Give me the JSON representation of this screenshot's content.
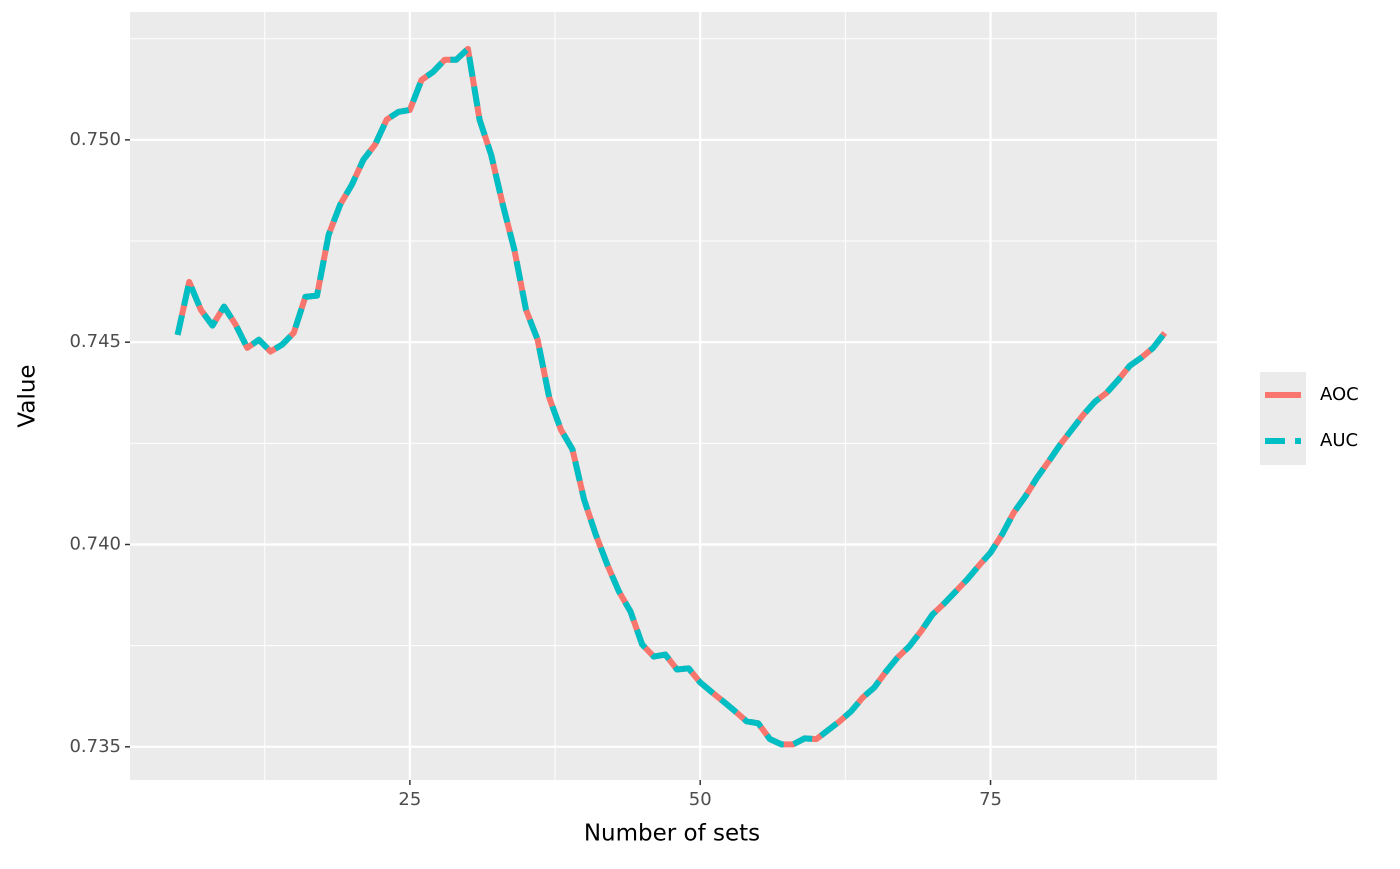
{
  "chart_data": {
    "type": "line",
    "x_label": "Number of sets",
    "y_label": "Value",
    "x": [
      5,
      6,
      7,
      8,
      9,
      10,
      11,
      12,
      13,
      14,
      15,
      16,
      17,
      18,
      19,
      20,
      21,
      22,
      23,
      24,
      25,
      26,
      27,
      28,
      29,
      30,
      31,
      32,
      33,
      34,
      35,
      36,
      37,
      38,
      39,
      40,
      41,
      42,
      43,
      44,
      45,
      46,
      47,
      48,
      49,
      50,
      51,
      52,
      53,
      54,
      55,
      56,
      57,
      58,
      59,
      60,
      61,
      62,
      63,
      64,
      65,
      66,
      67,
      68,
      69,
      70,
      71,
      72,
      73,
      74,
      75,
      76,
      77,
      78,
      79,
      80,
      81,
      82,
      83,
      84,
      85,
      86,
      87,
      88,
      89,
      90
    ],
    "series": [
      {
        "name": "AOC",
        "color": "#F8766D",
        "dash": "solid",
        "values": [
          0.74518,
          0.74649,
          0.7458,
          0.74541,
          0.74588,
          0.74543,
          0.74486,
          0.74506,
          0.74477,
          0.74494,
          0.74523,
          0.74612,
          0.74615,
          0.74765,
          0.7484,
          0.74889,
          0.74951,
          0.74988,
          0.7505,
          0.75069,
          0.75074,
          0.75148,
          0.75168,
          0.75198,
          0.75198,
          0.75225,
          0.7505,
          0.74963,
          0.7484,
          0.74728,
          0.7458,
          0.74506,
          0.74363,
          0.74284,
          0.74235,
          0.74111,
          0.74025,
          0.7395,
          0.73884,
          0.73834,
          0.73753,
          0.73723,
          0.73728,
          0.73691,
          0.73694,
          0.73659,
          0.73635,
          0.73612,
          0.73588,
          0.73563,
          0.73558,
          0.73519,
          0.73506,
          0.73506,
          0.73521,
          0.73519,
          0.73541,
          0.73563,
          0.73588,
          0.73622,
          0.73647,
          0.73686,
          0.73721,
          0.73748,
          0.73785,
          0.73827,
          0.73854,
          0.73884,
          0.73914,
          0.73948,
          0.7398,
          0.74025,
          0.74079,
          0.74119,
          0.74165,
          0.74205,
          0.74247,
          0.74284,
          0.74321,
          0.74353,
          0.74375,
          0.74407,
          0.74442,
          0.74462,
          0.74486,
          0.74523
        ]
      },
      {
        "name": "AUC",
        "color": "#00BFC4",
        "dash": "dashed",
        "values": [
          0.74518,
          0.74649,
          0.7458,
          0.74541,
          0.74588,
          0.74543,
          0.74486,
          0.74506,
          0.74477,
          0.74494,
          0.74523,
          0.74612,
          0.74615,
          0.74765,
          0.7484,
          0.74889,
          0.74951,
          0.74988,
          0.7505,
          0.75069,
          0.75074,
          0.75148,
          0.75168,
          0.75198,
          0.75198,
          0.75225,
          0.7505,
          0.74963,
          0.7484,
          0.74728,
          0.7458,
          0.74506,
          0.74363,
          0.74284,
          0.74235,
          0.74111,
          0.74025,
          0.7395,
          0.73884,
          0.73834,
          0.73753,
          0.73723,
          0.73728,
          0.73691,
          0.73694,
          0.73659,
          0.73635,
          0.73612,
          0.73588,
          0.73563,
          0.73558,
          0.73519,
          0.73506,
          0.73506,
          0.73521,
          0.73519,
          0.73541,
          0.73563,
          0.73588,
          0.73622,
          0.73647,
          0.73686,
          0.73721,
          0.73748,
          0.73785,
          0.73827,
          0.73854,
          0.73884,
          0.73914,
          0.73948,
          0.7398,
          0.74025,
          0.74079,
          0.74119,
          0.74165,
          0.74205,
          0.74247,
          0.74284,
          0.74321,
          0.74353,
          0.74375,
          0.74407,
          0.74442,
          0.74462,
          0.74486,
          0.74523
        ]
      }
    ],
    "xlim": [
      0.9,
      94.5
    ],
    "xticks": [
      25,
      50,
      75
    ],
    "xminorticks": [
      12.5,
      37.5,
      62.5,
      87.5
    ],
    "ylim": [
      0.73418,
      0.75316
    ],
    "yticks": [
      {
        "value": 0.735,
        "label": "0.735"
      },
      {
        "value": 0.74,
        "label": "0.740"
      },
      {
        "value": 0.745,
        "label": "0.745"
      },
      {
        "value": 0.75,
        "label": "0.750"
      }
    ],
    "yminorticks": [
      0.7375,
      0.7425,
      0.7475,
      0.7525
    ],
    "grid": true,
    "legend": "right"
  }
}
